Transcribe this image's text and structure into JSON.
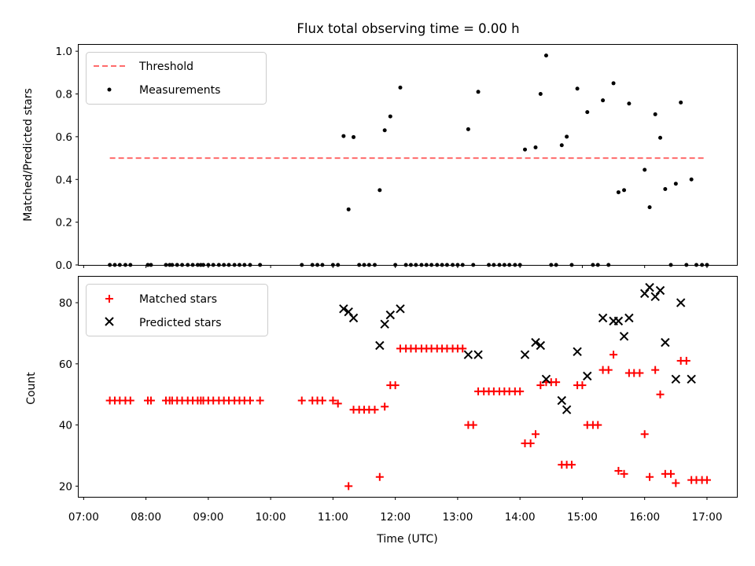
{
  "chart_data": {
    "title": "Flux total observing time = 0.00 h",
    "xlabel": "Time (UTC)",
    "xlim": [
      6.92,
      17.48
    ],
    "xticks": [
      "07:00",
      "08:00",
      "09:00",
      "10:00",
      "11:00",
      "12:00",
      "13:00",
      "14:00",
      "15:00",
      "16:00",
      "17:00"
    ],
    "top": {
      "type": "scatter",
      "ylabel": "Matched/Predicted stars",
      "ylim": [
        0,
        1.03
      ],
      "yticks": [
        "0.0",
        "0.2",
        "0.4",
        "0.6",
        "0.8",
        "1.0"
      ],
      "legend_location": "top-left",
      "threshold": {
        "name": "Threshold",
        "value": 0.5,
        "x_range": [
          7.42,
          16.99
        ],
        "color": "#ff6b6b"
      },
      "measurements": {
        "name": "Measurements",
        "color": "#000000",
        "points": [
          [
            7.42,
            0
          ],
          [
            7.5,
            0
          ],
          [
            7.58,
            0
          ],
          [
            7.67,
            0
          ],
          [
            7.75,
            0
          ],
          [
            8.03,
            0
          ],
          [
            8.08,
            0
          ],
          [
            8.32,
            0
          ],
          [
            8.38,
            0
          ],
          [
            8.42,
            0
          ],
          [
            8.5,
            0
          ],
          [
            8.58,
            0
          ],
          [
            8.67,
            0
          ],
          [
            8.75,
            0
          ],
          [
            8.83,
            0
          ],
          [
            8.88,
            0
          ],
          [
            8.92,
            0
          ],
          [
            9.0,
            0
          ],
          [
            9.08,
            0
          ],
          [
            9.17,
            0
          ],
          [
            9.25,
            0
          ],
          [
            9.33,
            0
          ],
          [
            9.42,
            0
          ],
          [
            9.5,
            0
          ],
          [
            9.58,
            0
          ],
          [
            9.67,
            0
          ],
          [
            9.83,
            0
          ],
          [
            10.5,
            0
          ],
          [
            10.67,
            0
          ],
          [
            10.75,
            0
          ],
          [
            10.83,
            0
          ],
          [
            11.0,
            0
          ],
          [
            11.08,
            0
          ],
          [
            11.17,
            0.603
          ],
          [
            11.25,
            0.26
          ],
          [
            11.33,
            0.598
          ],
          [
            11.75,
            0.35
          ],
          [
            11.83,
            0.63
          ],
          [
            11.92,
            0.695
          ],
          [
            12.08,
            0.83
          ],
          [
            11.42,
            0
          ],
          [
            11.5,
            0
          ],
          [
            11.58,
            0
          ],
          [
            11.67,
            0
          ],
          [
            12.0,
            0
          ],
          [
            12.17,
            0
          ],
          [
            12.25,
            0
          ],
          [
            12.33,
            0
          ],
          [
            12.42,
            0
          ],
          [
            12.5,
            0
          ],
          [
            12.58,
            0
          ],
          [
            12.67,
            0
          ],
          [
            12.75,
            0
          ],
          [
            12.83,
            0
          ],
          [
            12.92,
            0
          ],
          [
            13.0,
            0
          ],
          [
            13.08,
            0
          ],
          [
            13.25,
            0
          ],
          [
            13.5,
            0
          ],
          [
            13.58,
            0
          ],
          [
            13.67,
            0
          ],
          [
            13.75,
            0
          ],
          [
            13.83,
            0
          ],
          [
            13.92,
            0
          ],
          [
            14.0,
            0
          ],
          [
            14.5,
            0
          ],
          [
            14.58,
            0
          ],
          [
            14.83,
            0
          ],
          [
            15.17,
            0
          ],
          [
            15.25,
            0
          ],
          [
            15.42,
            0
          ],
          [
            16.42,
            0
          ],
          [
            16.67,
            0
          ],
          [
            16.83,
            0
          ],
          [
            16.92,
            0
          ],
          [
            17.0,
            0
          ],
          [
            13.17,
            0.635
          ],
          [
            13.33,
            0.81
          ],
          [
            14.08,
            0.54
          ],
          [
            14.25,
            0.55
          ],
          [
            14.33,
            0.8
          ],
          [
            14.42,
            0.98
          ],
          [
            14.67,
            0.56
          ],
          [
            14.75,
            0.6
          ],
          [
            14.92,
            0.825
          ],
          [
            15.08,
            0.715
          ],
          [
            15.33,
            0.77
          ],
          [
            15.5,
            0.85
          ],
          [
            15.58,
            0.34
          ],
          [
            15.67,
            0.35
          ],
          [
            15.75,
            0.755
          ],
          [
            16.0,
            0.445
          ],
          [
            16.08,
            0.27
          ],
          [
            16.17,
            0.705
          ],
          [
            16.25,
            0.595
          ],
          [
            16.33,
            0.355
          ],
          [
            16.5,
            0.38
          ],
          [
            16.58,
            0.76
          ],
          [
            16.75,
            0.4
          ]
        ]
      }
    },
    "bottom": {
      "type": "scatter",
      "ylabel": "Count",
      "ylim": [
        16.5,
        88.5
      ],
      "yticks": [
        "20",
        "40",
        "60",
        "80"
      ],
      "legend_location": "top-left",
      "series": [
        {
          "name": "Matched stars",
          "marker": "plus",
          "color": "#ff0000",
          "points": [
            [
              7.42,
              48
            ],
            [
              7.5,
              48
            ],
            [
              7.58,
              48
            ],
            [
              7.67,
              48
            ],
            [
              7.75,
              48
            ],
            [
              8.03,
              48
            ],
            [
              8.08,
              48
            ],
            [
              8.32,
              48
            ],
            [
              8.38,
              48
            ],
            [
              8.42,
              48
            ],
            [
              8.5,
              48
            ],
            [
              8.58,
              48
            ],
            [
              8.67,
              48
            ],
            [
              8.75,
              48
            ],
            [
              8.83,
              48
            ],
            [
              8.88,
              48
            ],
            [
              8.92,
              48
            ],
            [
              9.0,
              48
            ],
            [
              9.08,
              48
            ],
            [
              9.17,
              48
            ],
            [
              9.25,
              48
            ],
            [
              9.33,
              48
            ],
            [
              9.42,
              48
            ],
            [
              9.5,
              48
            ],
            [
              9.58,
              48
            ],
            [
              9.67,
              48
            ],
            [
              9.83,
              48
            ],
            [
              10.5,
              48
            ],
            [
              10.67,
              48
            ],
            [
              10.75,
              48
            ],
            [
              10.83,
              48
            ],
            [
              11.0,
              48
            ],
            [
              11.08,
              47
            ],
            [
              11.25,
              20
            ],
            [
              11.33,
              45
            ],
            [
              11.42,
              45
            ],
            [
              11.5,
              45
            ],
            [
              11.58,
              45
            ],
            [
              11.67,
              45
            ],
            [
              11.75,
              23
            ],
            [
              11.83,
              46
            ],
            [
              11.92,
              53
            ],
            [
              12.0,
              53
            ],
            [
              12.08,
              65
            ],
            [
              12.17,
              65
            ],
            [
              12.25,
              65
            ],
            [
              12.33,
              65
            ],
            [
              12.42,
              65
            ],
            [
              12.5,
              65
            ],
            [
              12.58,
              65
            ],
            [
              12.67,
              65
            ],
            [
              12.75,
              65
            ],
            [
              12.83,
              65
            ],
            [
              12.92,
              65
            ],
            [
              13.0,
              65
            ],
            [
              13.08,
              65
            ],
            [
              13.17,
              40
            ],
            [
              13.25,
              40
            ],
            [
              13.33,
              51
            ],
            [
              13.42,
              51
            ],
            [
              13.5,
              51
            ],
            [
              13.58,
              51
            ],
            [
              13.67,
              51
            ],
            [
              13.75,
              51
            ],
            [
              13.83,
              51
            ],
            [
              13.92,
              51
            ],
            [
              14.0,
              51
            ],
            [
              14.08,
              34
            ],
            [
              14.17,
              34
            ],
            [
              14.25,
              37
            ],
            [
              14.33,
              53
            ],
            [
              14.42,
              54
            ],
            [
              14.5,
              54
            ],
            [
              14.58,
              54
            ],
            [
              14.67,
              27
            ],
            [
              14.75,
              27
            ],
            [
              14.83,
              27
            ],
            [
              14.92,
              53
            ],
            [
              15.0,
              53
            ],
            [
              15.08,
              40
            ],
            [
              15.17,
              40
            ],
            [
              15.25,
              40
            ],
            [
              15.33,
              58
            ],
            [
              15.42,
              58
            ],
            [
              15.5,
              63
            ],
            [
              15.58,
              25
            ],
            [
              15.67,
              24
            ],
            [
              15.75,
              57
            ],
            [
              15.83,
              57
            ],
            [
              15.92,
              57
            ],
            [
              16.0,
              37
            ],
            [
              16.08,
              23
            ],
            [
              16.17,
              58
            ],
            [
              16.25,
              50
            ],
            [
              16.33,
              24
            ],
            [
              16.42,
              24
            ],
            [
              16.5,
              21
            ],
            [
              16.58,
              61
            ],
            [
              16.67,
              61
            ],
            [
              16.75,
              22
            ],
            [
              16.83,
              22
            ],
            [
              16.92,
              22
            ],
            [
              17.0,
              22
            ]
          ]
        },
        {
          "name": "Predicted stars",
          "marker": "x",
          "color": "#000000",
          "points": [
            [
              11.17,
              78
            ],
            [
              11.25,
              77
            ],
            [
              11.33,
              75
            ],
            [
              11.75,
              66
            ],
            [
              11.83,
              73
            ],
            [
              11.92,
              76
            ],
            [
              12.08,
              78
            ],
            [
              13.17,
              63
            ],
            [
              13.33,
              63
            ],
            [
              14.08,
              63
            ],
            [
              14.25,
              67
            ],
            [
              14.33,
              66
            ],
            [
              14.42,
              55
            ],
            [
              14.67,
              48
            ],
            [
              14.75,
              45
            ],
            [
              14.92,
              64
            ],
            [
              15.08,
              56
            ],
            [
              15.33,
              75
            ],
            [
              15.5,
              74
            ],
            [
              15.58,
              74
            ],
            [
              15.67,
              69
            ],
            [
              15.75,
              75
            ],
            [
              16.0,
              83
            ],
            [
              16.08,
              85
            ],
            [
              16.17,
              82
            ],
            [
              16.25,
              84
            ],
            [
              16.33,
              67
            ],
            [
              16.5,
              55
            ],
            [
              16.58,
              80
            ],
            [
              16.75,
              55
            ]
          ]
        }
      ]
    }
  }
}
